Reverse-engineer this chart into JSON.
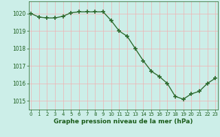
{
  "x": [
    0,
    1,
    2,
    3,
    4,
    5,
    6,
    7,
    8,
    9,
    10,
    11,
    12,
    13,
    14,
    15,
    16,
    17,
    18,
    19,
    20,
    21,
    22,
    23
  ],
  "y": [
    1020.0,
    1019.8,
    1019.75,
    1019.75,
    1019.85,
    1020.05,
    1020.1,
    1020.1,
    1020.1,
    1020.1,
    1019.6,
    1019.0,
    1018.7,
    1018.0,
    1017.3,
    1016.7,
    1016.4,
    1016.0,
    1015.25,
    1015.1,
    1015.4,
    1015.55,
    1016.0,
    1016.3
  ],
  "line_color": "#2d6a2d",
  "marker_color": "#2d6a2d",
  "bg_color": "#cceee8",
  "grid_color": "#f0b0b0",
  "xlabel": "Graphe pression niveau de la mer (hPa)",
  "xlabel_color": "#1a5c1a",
  "tick_color": "#1a5c1a",
  "ylim": [
    1014.5,
    1020.7
  ],
  "yticks": [
    1015,
    1016,
    1017,
    1018,
    1019,
    1020
  ],
  "xticks": [
    0,
    1,
    2,
    3,
    4,
    5,
    6,
    7,
    8,
    9,
    10,
    11,
    12,
    13,
    14,
    15,
    16,
    17,
    18,
    19,
    20,
    21,
    22,
    23
  ],
  "line_width": 1.0,
  "marker_size": 4
}
